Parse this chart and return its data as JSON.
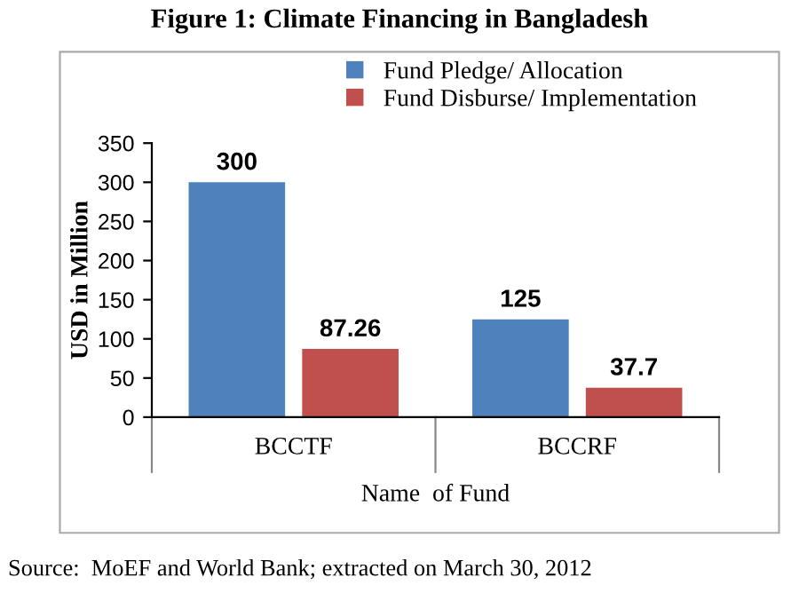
{
  "chart_data": {
    "type": "bar",
    "title": "Figure 1: Climate Financing in Bangladesh",
    "xlabel": "Name  of Fund",
    "ylabel": "USD in Million",
    "categories": [
      "BCCTF",
      "BCCRF"
    ],
    "series": [
      {
        "name": "Fund Pledge/ Allocation",
        "color": "#4f81bd",
        "values": [
          300,
          125
        ]
      },
      {
        "name": "Fund Disburse/ Implementation",
        "color": "#c0504d",
        "values": [
          87.26,
          37.7
        ]
      }
    ],
    "ylim": [
      0,
      350
    ],
    "yticks": [
      0,
      50,
      100,
      150,
      200,
      250,
      300,
      350
    ],
    "grid": false,
    "legend": "top right",
    "data_labels": true,
    "annotations": [
      "Source:  MoEF and World Bank; extracted on March 30, 2012"
    ]
  }
}
